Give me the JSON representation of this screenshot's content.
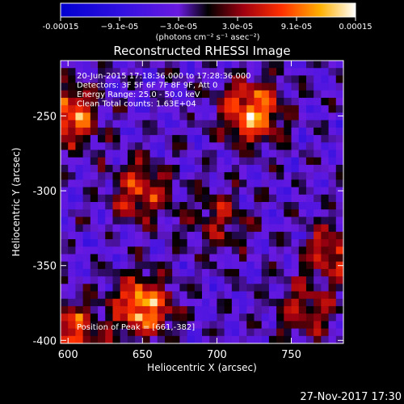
{
  "chart_data": {
    "type": "heatmap",
    "title": "Reconstructed RHESSI Image",
    "xlabel": "Heliocentric X (arcsec)",
    "ylabel": "Heliocentric Y (arcsec)",
    "xlim": [
      595,
      785
    ],
    "ylim": [
      -402,
      -213
    ],
    "x_ticks": [
      600,
      650,
      700,
      750
    ],
    "y_ticks": [
      -250,
      -300,
      -350,
      -400
    ],
    "colorbar": {
      "range": [
        -0.00015,
        0.00015
      ],
      "tick_labels": [
        "-0.00015",
        "−9.1e-05",
        "−3.0e-05",
        "3.0e-05",
        "9.1e-05",
        "0.00015"
      ],
      "unit_label": "(photons cm⁻² s⁻¹ asec⁻²)"
    },
    "annotations": [
      "20-Jun-2015 17:18:36.000 to 17:28:36.000",
      "Detectors: 3F 5F 6F 7F 8F 9F, Att 0",
      "Energy Range: 25.0 - 50.0 keV",
      "Clean     Total counts: 1.63E+04"
    ],
    "peak_label": "Position of Peak = [661,-382]",
    "peak": [
      661,
      -382
    ],
    "hotspots": [
      {
        "x": 723,
        "y": -248,
        "value": 0.00015
      },
      {
        "x": 600,
        "y": -250,
        "value": 0.00013
      },
      {
        "x": 650,
        "y": -377,
        "value": 0.00015
      },
      {
        "x": 600,
        "y": -395,
        "value": 0.00012
      },
      {
        "x": 648,
        "y": -300,
        "value": 0.0001
      },
      {
        "x": 778,
        "y": -340,
        "value": 9e-05
      },
      {
        "x": 760,
        "y": -380,
        "value": 8e-05
      },
      {
        "x": 700,
        "y": -320,
        "value": 7e-05
      }
    ],
    "footer": "27-Nov-2017 17:30"
  }
}
